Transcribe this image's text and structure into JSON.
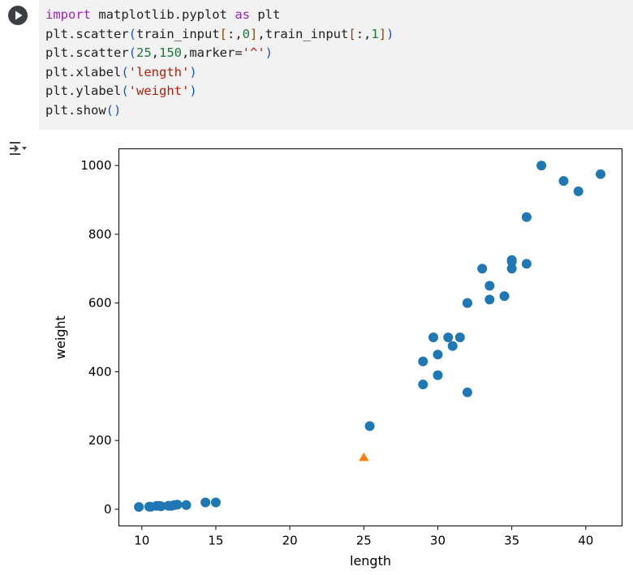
{
  "code_cell": {
    "lines": [
      [
        {
          "t": "import",
          "c": "kw"
        },
        {
          "t": " matplotlib.pyplot "
        },
        {
          "t": "as",
          "c": "kw"
        },
        {
          "t": " plt"
        }
      ],
      [
        {
          "t": "plt.scatter"
        },
        {
          "t": "(",
          "c": "br"
        },
        {
          "t": "train_input"
        },
        {
          "t": "[",
          "c": "br2"
        },
        {
          "t": ":,"
        },
        {
          "t": "0",
          "c": "num"
        },
        {
          "t": "]",
          "c": "br2"
        },
        {
          "t": ",train_input"
        },
        {
          "t": "[",
          "c": "br2"
        },
        {
          "t": ":,"
        },
        {
          "t": "1",
          "c": "num"
        },
        {
          "t": "]",
          "c": "br2"
        },
        {
          "t": ")",
          "c": "br"
        }
      ],
      [
        {
          "t": "plt.scatter"
        },
        {
          "t": "(",
          "c": "br"
        },
        {
          "t": "25",
          "c": "num"
        },
        {
          "t": ","
        },
        {
          "t": "150",
          "c": "num"
        },
        {
          "t": ",marker="
        },
        {
          "t": "'^'",
          "c": "str"
        },
        {
          "t": ")",
          "c": "br"
        }
      ],
      [
        {
          "t": "plt.xlabel"
        },
        {
          "t": "(",
          "c": "br"
        },
        {
          "t": "'length'",
          "c": "str"
        },
        {
          "t": ")",
          "c": "br"
        }
      ],
      [
        {
          "t": "plt.ylabel"
        },
        {
          "t": "(",
          "c": "br"
        },
        {
          "t": "'weight'",
          "c": "str"
        },
        {
          "t": ")",
          "c": "br"
        }
      ],
      [
        {
          "t": "plt.show"
        },
        {
          "t": "()",
          "c": "br"
        }
      ]
    ]
  },
  "icons": {
    "run": "play-icon",
    "output": "output-toggle-icon"
  },
  "colors": {
    "series1": "#1f77b4",
    "series2": "#ff7f0e"
  },
  "chart_data": {
    "type": "scatter",
    "xlabel": "length",
    "ylabel": "weight",
    "xlim": [
      8.45,
      42.45
    ],
    "ylim": [
      -48.6,
      1048.6
    ],
    "xticks": [
      10,
      15,
      20,
      25,
      30,
      35,
      40
    ],
    "yticks": [
      0,
      200,
      400,
      600,
      800,
      1000
    ],
    "grid": false,
    "series": [
      {
        "marker": "circle",
        "color": "#1f77b4",
        "points": [
          [
            9.8,
            6.7
          ],
          [
            10.5,
            7.5
          ],
          [
            10.6,
            7.0
          ],
          [
            11.0,
            9.7
          ],
          [
            11.2,
            9.8
          ],
          [
            11.3,
            8.7
          ],
          [
            11.8,
            10.0
          ],
          [
            12.0,
            9.9
          ],
          [
            12.2,
            12.2
          ],
          [
            12.4,
            13.4
          ],
          [
            13.0,
            12.2
          ],
          [
            14.3,
            19.7
          ],
          [
            15.0,
            19.9
          ],
          [
            25.4,
            242.0
          ],
          [
            29.0,
            363.0
          ],
          [
            29.0,
            430.0
          ],
          [
            29.7,
            500.0
          ],
          [
            30.0,
            390.0
          ],
          [
            30.0,
            450.0
          ],
          [
            30.7,
            500.0
          ],
          [
            31.0,
            475.0
          ],
          [
            31.5,
            500.0
          ],
          [
            32.0,
            340.0
          ],
          [
            32.0,
            600.0
          ],
          [
            32.0,
            600.0
          ],
          [
            33.0,
            700.0
          ],
          [
            33.5,
            610.0
          ],
          [
            33.5,
            650.0
          ],
          [
            34.5,
            620.0
          ],
          [
            35.0,
            700.0
          ],
          [
            35.0,
            720.0
          ],
          [
            35.0,
            725.0
          ],
          [
            36.0,
            714.0
          ],
          [
            36.0,
            850.0
          ],
          [
            37.0,
            1000.0
          ],
          [
            38.5,
            955.0
          ],
          [
            39.5,
            925.0
          ],
          [
            41.0,
            975.0
          ]
        ]
      },
      {
        "marker": "triangle",
        "color": "#ff7f0e",
        "points": [
          [
            25,
            150
          ]
        ]
      }
    ]
  }
}
